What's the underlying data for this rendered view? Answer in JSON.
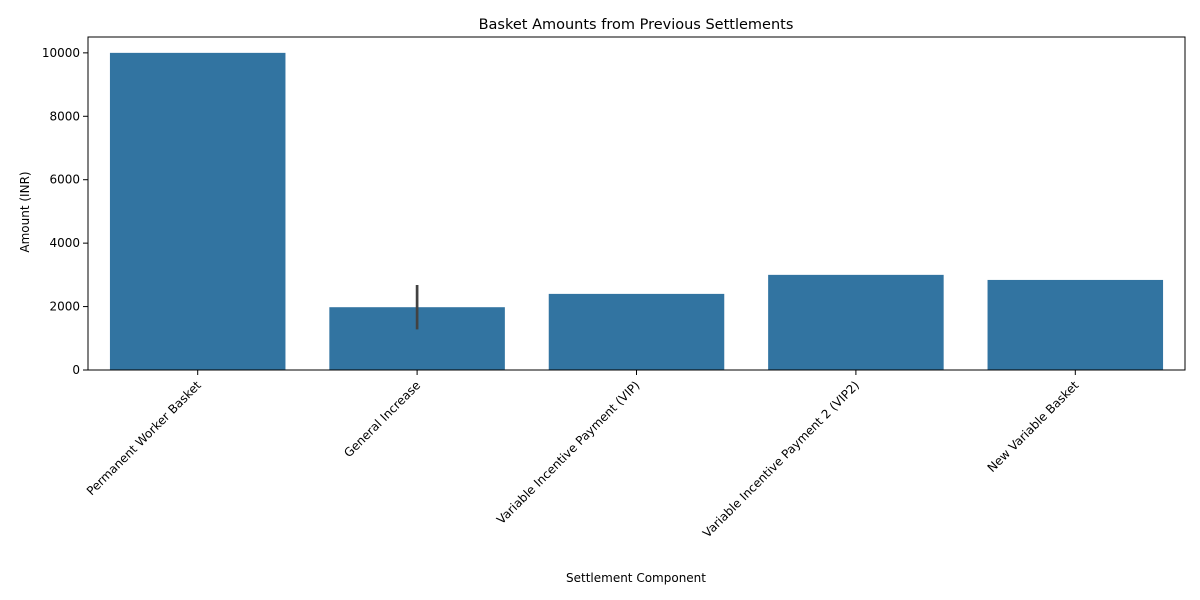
{
  "chart_data": {
    "type": "bar",
    "title": "Basket Amounts from Previous Settlements",
    "xlabel": "Settlement Component",
    "ylabel": "Amount (INR)",
    "categories": [
      "Permanent Worker Basket",
      "General Increase",
      "Variable Incentive Payment (VIP)",
      "Variable Incentive Payment 2 (VIP2)",
      "New Variable Basket"
    ],
    "values": [
      10000,
      1980,
      2400,
      3000,
      2840
    ],
    "error_bars": [
      null,
      [
        1280,
        2680
      ],
      null,
      null,
      null
    ],
    "ylim": [
      0,
      10500
    ],
    "yticks": [
      0,
      2000,
      4000,
      6000,
      8000,
      10000
    ],
    "bar_color": "#3274a1",
    "error_color": "#424242",
    "grid": false,
    "legend": "none"
  }
}
